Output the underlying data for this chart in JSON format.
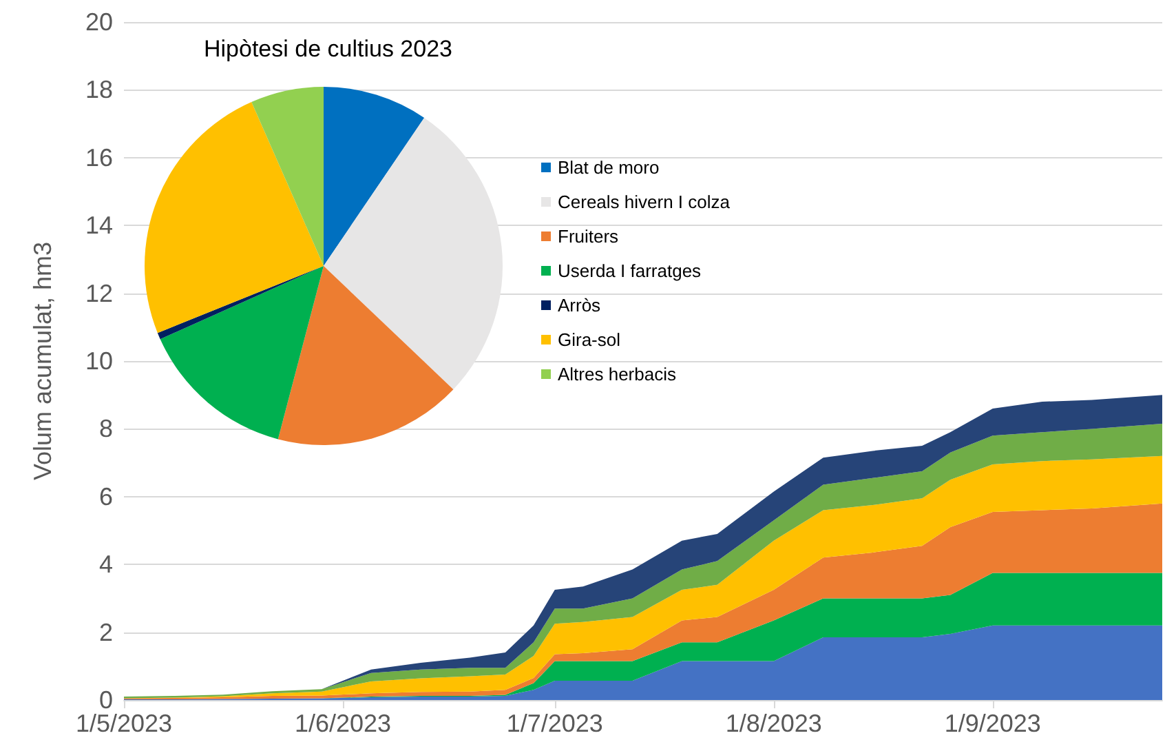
{
  "chart_data": [
    {
      "type": "area",
      "stacked": true,
      "ylabel": "Volum acumulat, hm3",
      "grid": "y",
      "x": [
        "2023-05-01",
        "2023-05-08",
        "2023-05-15",
        "2023-05-22",
        "2023-05-29",
        "2023-06-05",
        "2023-06-12",
        "2023-06-19",
        "2023-06-24",
        "2023-06-28",
        "2023-07-01",
        "2023-07-05",
        "2023-07-12",
        "2023-07-19",
        "2023-07-24",
        "2023-08-01",
        "2023-08-08",
        "2023-08-15",
        "2023-08-22",
        "2023-08-26",
        "2023-09-01",
        "2023-09-08",
        "2023-09-15",
        "2023-09-25"
      ],
      "xlim": [
        "2023-05-01",
        "2023-09-25"
      ],
      "xticks": [
        {
          "value": "2023-05-01",
          "label": "1/5/2023"
        },
        {
          "value": "2023-06-01",
          "label": "1/6/2023"
        },
        {
          "value": "2023-07-01",
          "label": "1/7/2023"
        },
        {
          "value": "2023-08-01",
          "label": "1/8/2023"
        },
        {
          "value": "2023-09-01",
          "label": "1/9/2023"
        }
      ],
      "ylim": [
        0,
        20
      ],
      "yticks": [
        0,
        2,
        4,
        6,
        8,
        10,
        12,
        14,
        16,
        18,
        20
      ],
      "series": [
        {
          "color": "#4472c4",
          "values": [
            0.02,
            0.02,
            0.03,
            0.04,
            0.05,
            0.08,
            0.1,
            0.1,
            0.12,
            0.3,
            0.57,
            0.57,
            0.57,
            1.15,
            1.15,
            1.15,
            1.85,
            1.85,
            1.85,
            1.95,
            2.2,
            2.2,
            2.2,
            2.2
          ]
        },
        {
          "color": "#00b050",
          "values": [
            0,
            0,
            0,
            0,
            0,
            0.02,
            0.02,
            0.02,
            0.03,
            0.2,
            0.58,
            0.58,
            0.58,
            0.55,
            0.55,
            1.2,
            1.15,
            1.15,
            1.15,
            1.15,
            1.55,
            1.55,
            1.55,
            1.55
          ]
        },
        {
          "color": "#ed7d31",
          "values": [
            0.03,
            0.04,
            0.05,
            0.08,
            0.08,
            0.1,
            0.12,
            0.13,
            0.15,
            0.15,
            0.2,
            0.23,
            0.35,
            0.65,
            0.75,
            0.9,
            1.2,
            1.35,
            1.55,
            2.0,
            1.8,
            1.85,
            1.9,
            2.05
          ]
        },
        {
          "color": "#ffc000",
          "values": [
            0,
            0.01,
            0.03,
            0.08,
            0.12,
            0.35,
            0.4,
            0.45,
            0.45,
            0.65,
            0.9,
            0.92,
            0.95,
            0.9,
            0.95,
            1.45,
            1.4,
            1.4,
            1.4,
            1.4,
            1.4,
            1.45,
            1.45,
            1.4
          ]
        },
        {
          "color": "#70ad47",
          "values": [
            0.05,
            0.05,
            0.05,
            0.06,
            0.07,
            0.25,
            0.26,
            0.25,
            0.2,
            0.4,
            0.45,
            0.4,
            0.55,
            0.6,
            0.7,
            0.6,
            0.75,
            0.8,
            0.8,
            0.8,
            0.85,
            0.85,
            0.9,
            0.95
          ]
        },
        {
          "color": "#264478",
          "values": [
            0,
            0,
            0,
            0,
            0,
            0.1,
            0.2,
            0.3,
            0.45,
            0.5,
            0.55,
            0.65,
            0.85,
            0.85,
            0.8,
            0.85,
            0.8,
            0.8,
            0.75,
            0.6,
            0.8,
            0.9,
            0.85,
            0.85
          ]
        }
      ]
    },
    {
      "type": "pie",
      "title": "Hipòtesi de cultius 2023",
      "legend": "right",
      "categories": [
        "Blat de moro",
        "Cereals hivern I colza",
        "Fruiters",
        "Userda I farratges",
        "Arròs",
        "Gira-sol",
        "Altres herbacis"
      ],
      "values": [
        9.5,
        27.6,
        17,
        14.2,
        0.6,
        24.5,
        6.6
      ],
      "colors": [
        "#0070c0",
        "#e7e6e6",
        "#ed7d31",
        "#00b050",
        "#002060",
        "#ffc000",
        "#92d050"
      ]
    }
  ]
}
